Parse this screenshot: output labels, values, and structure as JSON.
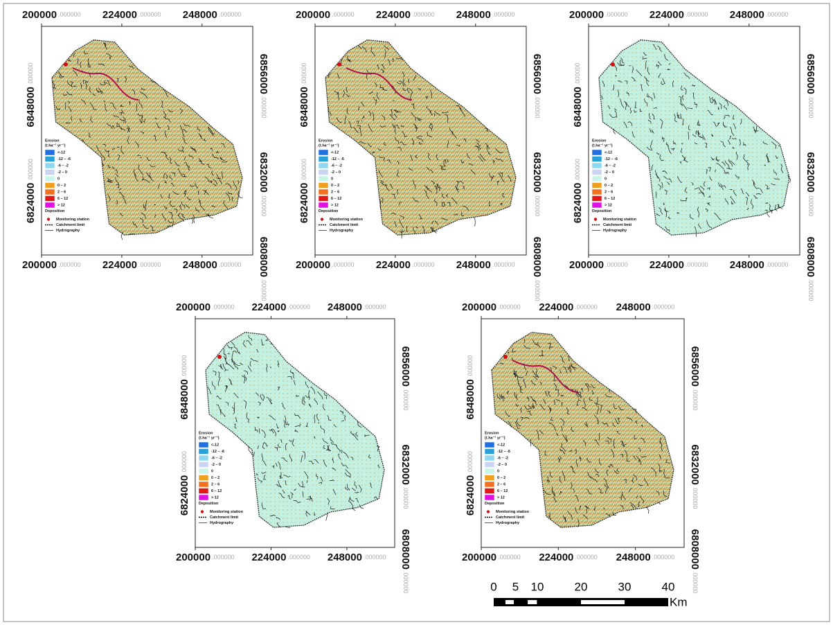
{
  "map": {
    "x_ticks": [
      "200000",
      "224000",
      "248000"
    ],
    "y_ticks_left": [
      "6848000",
      "6824000"
    ],
    "y_ticks_right": [
      "6856000",
      "6832000",
      "6808000"
    ],
    "tick_suffix": ".000000",
    "legend": {
      "title": "Erosion",
      "unit": "(t.ha⁻¹ yr⁻¹)",
      "classes": [
        "<-12",
        "-12 – -6",
        "-6 – -2",
        "-2 – 0",
        "0",
        "0 – 2",
        "2 – 6",
        "6 – 12",
        "> 12"
      ],
      "colors": [
        "#1f6fe0",
        "#2aa0d8",
        "#8fd8ef",
        "#c8d4f2",
        "#c8f5e8",
        "#f0a020",
        "#f07020",
        "#e01818",
        "#e010e0"
      ],
      "footer": "Deposition",
      "symbols": [
        "Monitoring station",
        "Catchment limit",
        "Hydrography"
      ]
    },
    "scale_bar": {
      "labels": [
        0,
        5,
        10,
        20,
        30,
        40
      ],
      "unit": "Km"
    }
  }
}
